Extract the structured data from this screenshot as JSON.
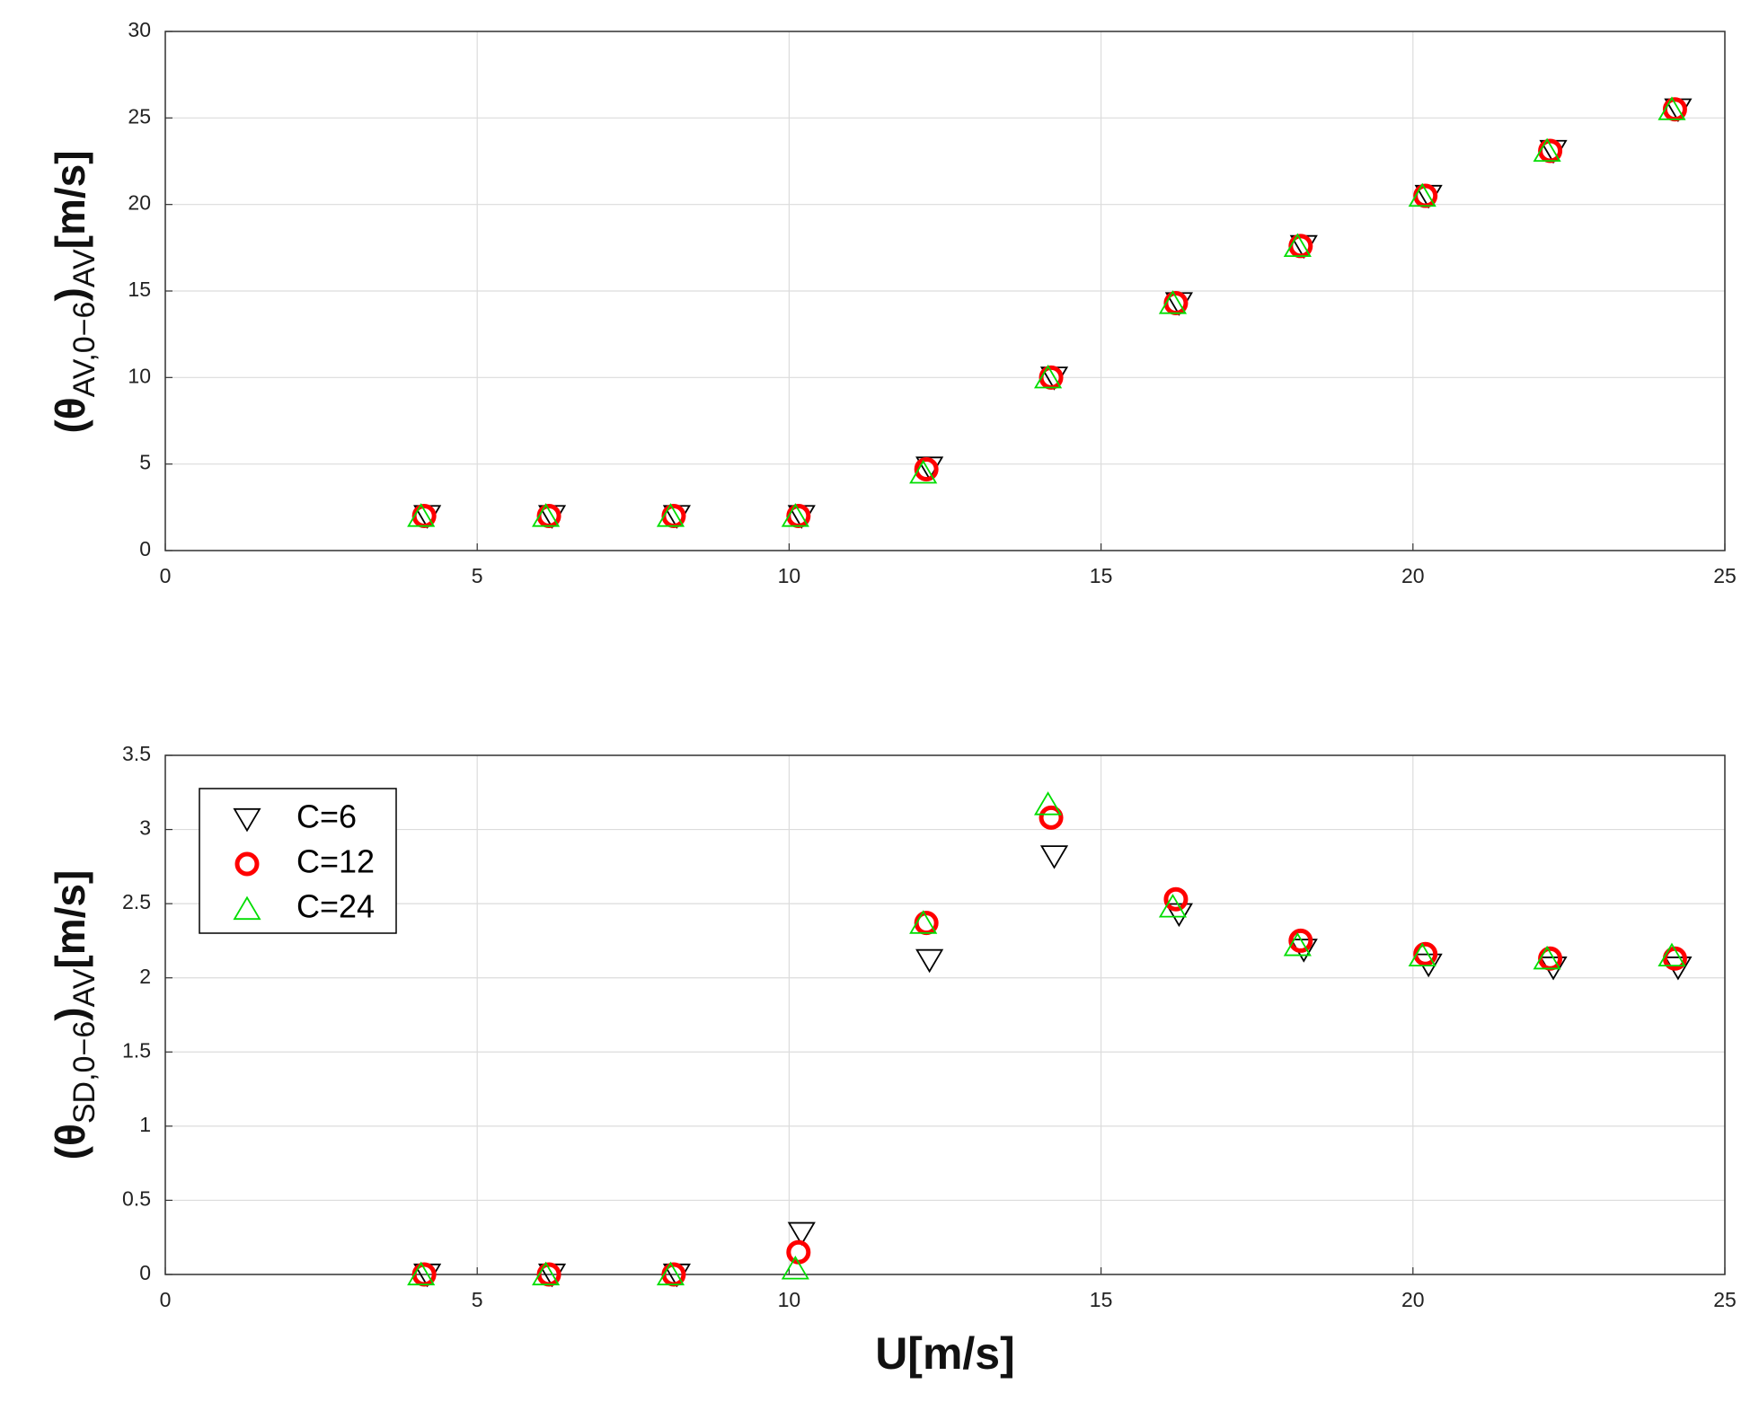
{
  "chart_data": [
    {
      "type": "scatter",
      "ylabel": [
        "(θ",
        "AV,0−6",
        ")",
        "AV",
        "[m/s]"
      ],
      "xlim": [
        0,
        25
      ],
      "xticks": [
        0,
        5,
        10,
        15,
        20,
        25
      ],
      "ylim": [
        0,
        30
      ],
      "yticks": [
        0,
        5,
        10,
        15,
        20,
        25,
        30
      ],
      "grid": true,
      "series": [
        {
          "marker": "triangle-down",
          "color": "#000000",
          "x": [
            4.2,
            6.2,
            8.2,
            10.2,
            12.25,
            14.25,
            16.25,
            18.25,
            20.25,
            22.25,
            24.25
          ],
          "values": [
            2,
            2,
            2,
            2,
            4.8,
            10,
            14.3,
            17.6,
            20.5,
            23.1,
            25.5
          ]
        },
        {
          "marker": "circle",
          "color": "#ff0000",
          "x": [
            4.15,
            6.15,
            8.15,
            10.15,
            12.2,
            14.2,
            16.2,
            18.2,
            20.2,
            22.2,
            24.2
          ],
          "values": [
            2,
            2,
            2,
            2,
            4.7,
            10,
            14.3,
            17.6,
            20.5,
            23.1,
            25.5
          ]
        },
        {
          "marker": "triangle-up",
          "color": "#00dd00",
          "x": [
            4.1,
            6.1,
            8.1,
            10.1,
            12.15,
            14.15,
            16.15,
            18.15,
            20.15,
            22.15,
            24.15
          ],
          "values": [
            2,
            2,
            2,
            2,
            4.5,
            10,
            14.3,
            17.6,
            20.5,
            23.1,
            25.5
          ]
        }
      ]
    },
    {
      "type": "scatter",
      "ylabel": [
        "(θ",
        "SD,0−6",
        ")",
        "AV",
        "[m/s]"
      ],
      "xlabel": "U[m/s]",
      "xlim": [
        0,
        25
      ],
      "xticks": [
        0,
        5,
        10,
        15,
        20,
        25
      ],
      "ylim": [
        0,
        3.5
      ],
      "yticks": [
        0,
        0.5,
        1,
        1.5,
        2,
        2.5,
        3,
        3.5
      ],
      "grid": true,
      "legend": "upper left",
      "series": [
        {
          "name": "C=6",
          "marker": "triangle-down",
          "color": "#000000",
          "x": [
            4.2,
            6.2,
            8.2,
            10.2,
            12.25,
            14.25,
            16.25,
            18.25,
            20.25,
            22.25,
            24.25
          ],
          "values": [
            0,
            0,
            0,
            0.28,
            2.12,
            2.82,
            2.43,
            2.19,
            2.09,
            2.07,
            2.07
          ]
        },
        {
          "name": "C=12",
          "marker": "circle",
          "color": "#ff0000",
          "x": [
            4.15,
            6.15,
            8.15,
            10.15,
            12.2,
            14.2,
            16.2,
            18.2,
            20.2,
            22.2,
            24.2
          ],
          "values": [
            0,
            0,
            0,
            0.15,
            2.37,
            3.08,
            2.53,
            2.25,
            2.16,
            2.13,
            2.13
          ]
        },
        {
          "name": "C=24",
          "marker": "triangle-up",
          "color": "#00dd00",
          "x": [
            4.1,
            6.1,
            8.1,
            10.1,
            12.15,
            14.15,
            16.15,
            18.15,
            20.15,
            22.15,
            24.15
          ],
          "values": [
            0,
            0,
            0,
            0.04,
            2.37,
            3.17,
            2.48,
            2.22,
            2.15,
            2.13,
            2.15
          ]
        }
      ]
    }
  ]
}
